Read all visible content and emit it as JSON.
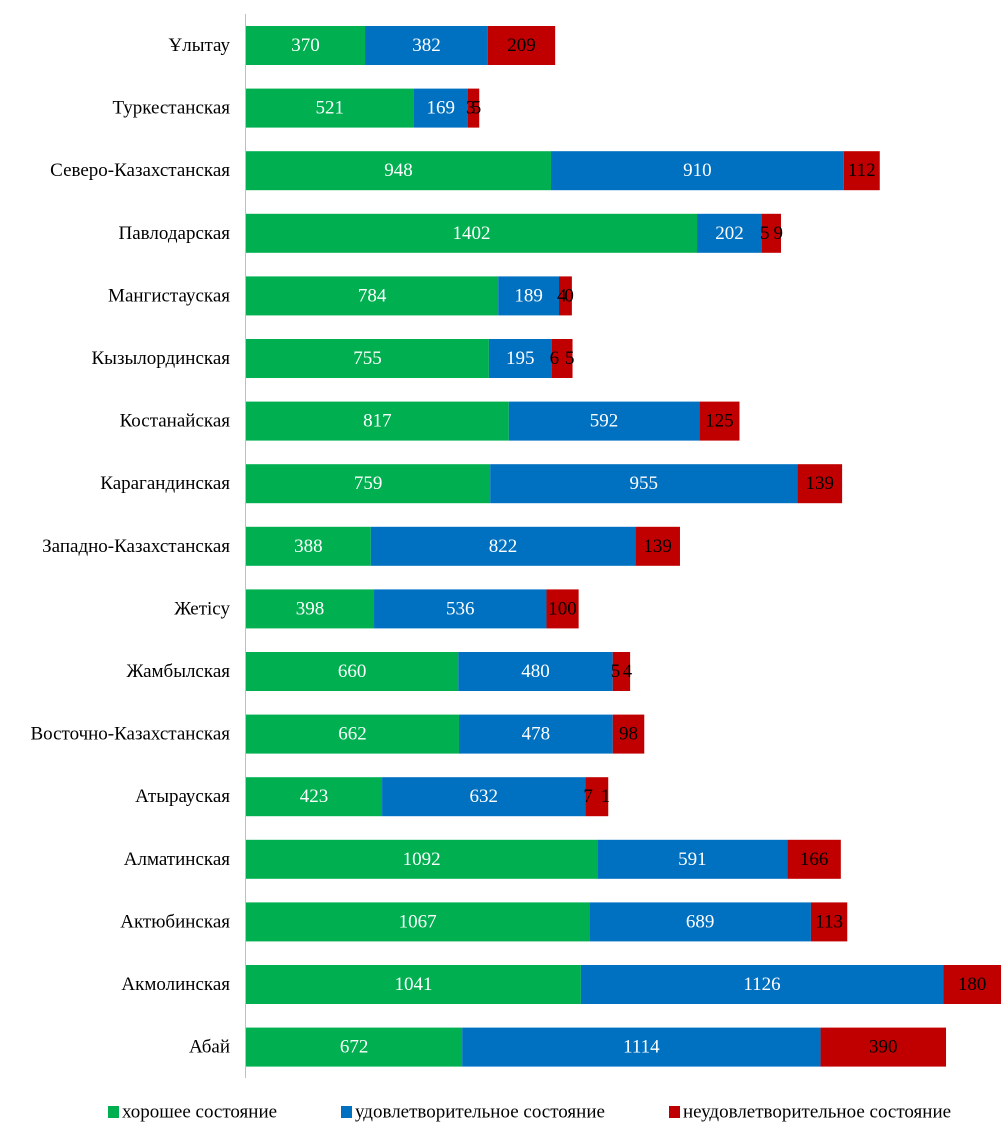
{
  "chart_data": {
    "type": "bar",
    "orientation": "horizontal",
    "stacked": true,
    "categories": [
      "Ұлытау",
      "Туркестанская",
      "Северо-Казахстанская",
      "Павлодарская",
      "Мангистауская",
      "Кызылординская",
      "Костанайская",
      "Карагандинская",
      "Западно-Казахстанская",
      "Жетісу",
      "Жамбылская",
      "Восточно-Казахстанская",
      "Атырауская",
      "Алматинская",
      "Актюбинская",
      "Акмолинская",
      "Абай"
    ],
    "series": [
      {
        "name": "хорошее состояние",
        "color": "#00b050",
        "label_color": "#ffffff",
        "values": [
          370,
          521,
          948,
          1402,
          784,
          755,
          817,
          759,
          388,
          398,
          660,
          662,
          423,
          1092,
          1067,
          1041,
          672
        ]
      },
      {
        "name": "удовлетворительное состояние",
        "color": "#0070c0",
        "label_color": "#ffffff",
        "values": [
          382,
          169,
          910,
          202,
          189,
          195,
          592,
          955,
          822,
          536,
          480,
          478,
          632,
          591,
          689,
          1126,
          1114
        ]
      },
      {
        "name": "неудовлетворительное состояние",
        "color": "#c00000",
        "label_color": "#000000",
        "values": [
          209,
          35,
          112,
          59,
          40,
          65,
          125,
          139,
          139,
          100,
          54,
          98,
          71,
          166,
          113,
          180,
          390
        ]
      }
    ],
    "xlim": [
      0,
      2350
    ],
    "grid": false,
    "data_labels": true,
    "legend_position": "bottom"
  }
}
